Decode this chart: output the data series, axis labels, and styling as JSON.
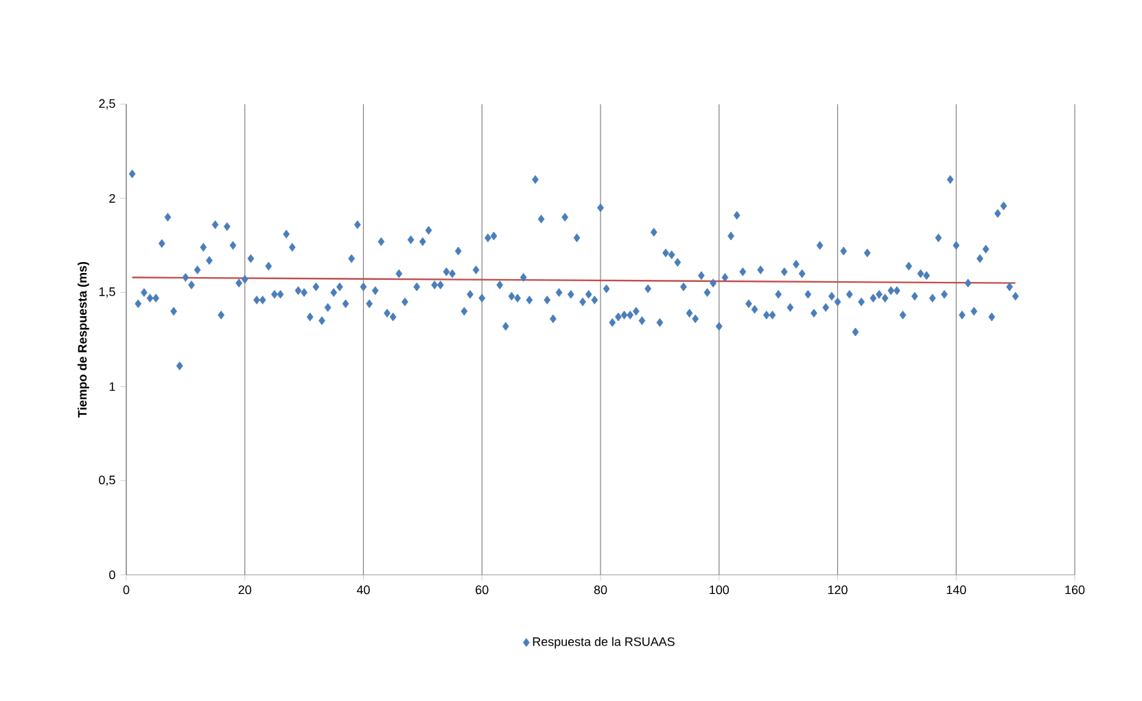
{
  "chart_data": {
    "type": "scatter",
    "ylabel": "Tiempo de Respuesta (ms)",
    "xlim": [
      0,
      160
    ],
    "xticks": [
      0,
      20,
      40,
      60,
      80,
      100,
      120,
      140,
      160
    ],
    "ylim": [
      0,
      2.5
    ],
    "yticks": [
      0,
      {
        "value": 0.5,
        "label": "0,5"
      },
      1,
      {
        "value": 1.5,
        "label": "1,5"
      },
      2,
      {
        "value": 2.5,
        "label": "2,5"
      }
    ],
    "grid": "x",
    "legend": "bottom",
    "marker": "diamond",
    "series": [
      {
        "name": "Respuesta de la RSUAAS",
        "color": "#4a7ebb",
        "x": [
          1,
          2,
          3,
          4,
          5,
          6,
          7,
          8,
          9,
          10,
          11,
          12,
          13,
          14,
          15,
          16,
          17,
          18,
          19,
          20,
          21,
          22,
          23,
          24,
          25,
          26,
          27,
          28,
          29,
          30,
          31,
          32,
          33,
          34,
          35,
          36,
          37,
          38,
          39,
          40,
          41,
          42,
          43,
          44,
          45,
          46,
          47,
          48,
          49,
          50,
          51,
          52,
          53,
          54,
          55,
          56,
          57,
          58,
          59,
          60,
          61,
          62,
          63,
          64,
          65,
          66,
          67,
          68,
          69,
          70,
          71,
          72,
          73,
          74,
          75,
          76,
          77,
          78,
          79,
          80,
          81,
          82,
          83,
          84,
          85,
          86,
          87,
          88,
          89,
          90,
          91,
          92,
          93,
          94,
          95,
          96,
          97,
          98,
          99,
          100,
          101,
          102,
          103,
          104,
          105,
          106,
          107,
          108,
          109,
          110,
          111,
          112,
          113,
          114,
          115,
          116,
          117,
          118,
          119,
          120,
          121,
          122,
          123,
          124,
          125,
          126,
          127,
          128,
          129,
          130,
          131,
          132,
          133,
          134,
          135,
          136,
          137,
          138,
          139,
          140,
          141,
          142,
          143,
          144,
          145,
          146,
          147,
          148,
          149,
          150
        ],
        "values": [
          2.13,
          1.44,
          1.5,
          1.47,
          1.47,
          1.76,
          1.9,
          1.4,
          1.11,
          1.58,
          1.54,
          1.62,
          1.74,
          1.67,
          1.86,
          1.38,
          1.85,
          1.75,
          1.55,
          1.57,
          1.68,
          1.46,
          1.46,
          1.64,
          1.49,
          1.49,
          1.81,
          1.74,
          1.51,
          1.5,
          1.37,
          1.53,
          1.35,
          1.42,
          1.5,
          1.53,
          1.44,
          1.68,
          1.86,
          1.53,
          1.44,
          1.51,
          1.77,
          1.39,
          1.37,
          1.6,
          1.45,
          1.78,
          1.53,
          1.77,
          1.83,
          1.54,
          1.54,
          1.61,
          1.6,
          1.72,
          1.4,
          1.49,
          1.62,
          1.47,
          1.79,
          1.8,
          1.54,
          1.32,
          1.48,
          1.47,
          1.58,
          1.46,
          2.1,
          1.89,
          1.46,
          1.36,
          1.5,
          1.9,
          1.49,
          1.79,
          1.45,
          1.49,
          1.46,
          1.95,
          1.52,
          1.34,
          1.37,
          1.38,
          1.38,
          1.4,
          1.35,
          1.52,
          1.82,
          1.34,
          1.71,
          1.7,
          1.66,
          1.53,
          1.39,
          1.36,
          1.59,
          1.5,
          1.55,
          1.32,
          1.58,
          1.8,
          1.91,
          1.61,
          1.44,
          1.41,
          1.62,
          1.38,
          1.38,
          1.49,
          1.61,
          1.42,
          1.65,
          1.6,
          1.49,
          1.39,
          1.75,
          1.42,
          1.48,
          1.45,
          1.72,
          1.49,
          1.29,
          1.45,
          1.71,
          1.47,
          1.49,
          1.47,
          1.51,
          1.51,
          1.38,
          1.64,
          1.48,
          1.6,
          1.59,
          1.47,
          1.79,
          1.49,
          2.1,
          1.75,
          1.38,
          1.55,
          1.4,
          1.68,
          1.73,
          1.37,
          1.92,
          1.96,
          1.53,
          1.48
        ]
      },
      {
        "type": "line",
        "color": "#c0504d",
        "x": [
          1,
          150
        ],
        "values": [
          1.58,
          1.55
        ],
        "marker": "none"
      }
    ]
  }
}
